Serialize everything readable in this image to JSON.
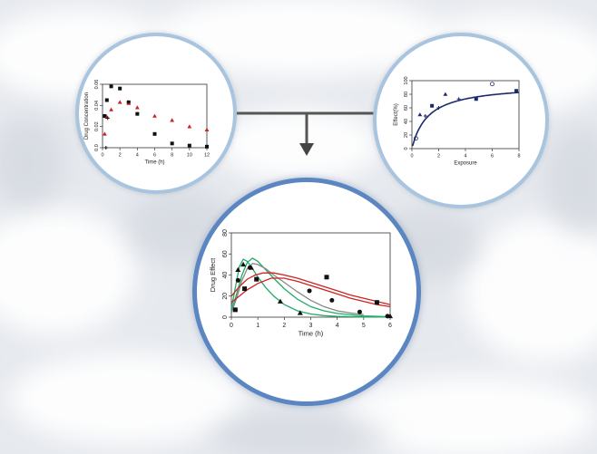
{
  "colors": {
    "axis": "#333333",
    "black_series": "#111111",
    "red_series": "#cc2222",
    "navy_series": "#1a2a6c",
    "green_curve": "#22aa66",
    "gray_curve": "#888888",
    "circle_border_light": "#a9c4de",
    "circle_border_dark": "#5b86c2",
    "connector": "#555555"
  },
  "chart_data": [
    {
      "type": "scatter",
      "xlabel": "Time (h)",
      "ylabel": "Drug Concentration",
      "xlim": [
        0,
        12
      ],
      "ylim": [
        0,
        0.06
      ],
      "xticks": [
        0,
        2,
        4,
        6,
        8,
        10,
        12
      ],
      "yticks": [
        0.0,
        0.02,
        0.04,
        0.06
      ],
      "ytick_labels": [
        "0.0",
        "0.02",
        "0.04",
        "0.06"
      ],
      "series": [
        {
          "marker": "square",
          "color": "#111111",
          "x": [
            0.25,
            0.5,
            1,
            2,
            3,
            4,
            6,
            8,
            10,
            12
          ],
          "y": [
            0.03,
            0.045,
            0.058,
            0.056,
            0.043,
            0.032,
            0.013,
            0.004,
            0.002,
            0.001
          ]
        },
        {
          "marker": "triangle",
          "color": "#cc2222",
          "x": [
            0.25,
            0.5,
            1,
            2,
            3,
            4,
            6,
            8,
            10,
            12
          ],
          "y": [
            0.013,
            0.029,
            0.036,
            0.043,
            0.042,
            0.038,
            0.03,
            0.026,
            0.02,
            0.017
          ]
        },
        {
          "marker": "cross",
          "color": "#111111",
          "x": [
            0.4,
            0.6,
            3
          ],
          "y": [
            0.0,
            0.028,
            0.043
          ]
        }
      ]
    },
    {
      "type": "scatter",
      "xlabel": "Exposure",
      "ylabel": "Effect(%)",
      "xlim": [
        0,
        8
      ],
      "ylim": [
        0,
        100
      ],
      "xticks": [
        0,
        2,
        4,
        6,
        8
      ],
      "yticks": [
        0,
        20,
        40,
        60,
        80,
        100
      ],
      "emax_curve": {
        "emax": 100,
        "ec50": 1.2,
        "e0": 0
      },
      "series": [
        {
          "marker": "mixed",
          "color": "#1a2a6c",
          "x": [
            0.3,
            0.6,
            1.0,
            1.5,
            2.0,
            2.5,
            3.5,
            4.8,
            6.0,
            7.8
          ],
          "y": [
            15,
            50,
            48,
            63,
            60,
            80,
            73,
            73,
            95,
            85
          ]
        }
      ]
    },
    {
      "type": "line",
      "xlabel": "Time (h)",
      "ylabel": "Drug Effect",
      "xlim": [
        0,
        6
      ],
      "ylim": [
        0,
        80
      ],
      "xticks": [
        0,
        1,
        2,
        3,
        4,
        5,
        6
      ],
      "yticks": [
        0,
        20,
        40,
        60,
        80
      ],
      "points": [
        {
          "marker": "square",
          "x": [
            0.15,
            0.5,
            0.95,
            3.6,
            5.5
          ],
          "y": [
            7,
            27,
            36,
            38,
            14
          ]
        },
        {
          "marker": "circle",
          "x": [
            0.25,
            0.7,
            2.95,
            3.8,
            4.85,
            5.9
          ],
          "y": [
            35,
            47,
            25,
            16,
            5,
            1
          ]
        },
        {
          "marker": "triangle",
          "x": [
            0.25,
            0.45,
            0.75,
            1.85,
            2.6,
            6.0
          ],
          "y": [
            45,
            50,
            47,
            15,
            4,
            1
          ]
        }
      ],
      "curves": [
        {
          "color": "#22aa66",
          "x": [
            0,
            0.15,
            0.3,
            0.45,
            0.6,
            0.8,
            1.0,
            1.3,
            1.6,
            2.0,
            2.5,
            3.0,
            3.5,
            4.0,
            5.0,
            6.0
          ],
          "y": [
            8,
            28,
            48,
            55,
            53,
            46,
            38,
            28,
            20,
            12,
            6,
            3,
            1.5,
            0.8,
            0.3,
            0.1
          ]
        },
        {
          "color": "#22aa66",
          "x": [
            0,
            0.2,
            0.4,
            0.6,
            0.8,
            1.0,
            1.3,
            1.6,
            2.0,
            2.5,
            3.0,
            3.5,
            4.0,
            5.0,
            6.0
          ],
          "y": [
            5,
            22,
            40,
            52,
            56,
            53,
            45,
            37,
            27,
            17,
            10,
            6,
            3.5,
            1.2,
            0.4
          ]
        },
        {
          "color": "#888888",
          "x": [
            0,
            0.2,
            0.4,
            0.6,
            0.8,
            1.0,
            1.3,
            1.6,
            2.0,
            2.5,
            3.0,
            3.5,
            4.0,
            4.5,
            5.0
          ],
          "y": [
            4,
            18,
            35,
            46,
            51,
            50,
            46,
            40,
            33,
            24,
            16,
            10,
            6,
            4,
            2.5
          ]
        },
        {
          "color": "#cc2222",
          "x": [
            0,
            0.3,
            0.6,
            0.9,
            1.2,
            1.6,
            2.0,
            2.5,
            3.0,
            3.5,
            4.0,
            4.5,
            5.0,
            5.5,
            6.0
          ],
          "y": [
            20,
            29,
            36,
            40,
            42,
            42,
            40,
            37,
            33,
            29,
            25,
            21,
            18,
            15,
            12
          ]
        },
        {
          "color": "#cc2222",
          "x": [
            0,
            0.3,
            0.6,
            1.0,
            1.5,
            2.0,
            2.5,
            3.0,
            3.5,
            4.0,
            4.5,
            5.0,
            5.5,
            6.0
          ],
          "y": [
            14,
            20,
            26,
            32,
            37,
            37,
            34,
            30,
            26,
            22,
            18,
            15,
            12,
            10
          ]
        }
      ]
    }
  ]
}
